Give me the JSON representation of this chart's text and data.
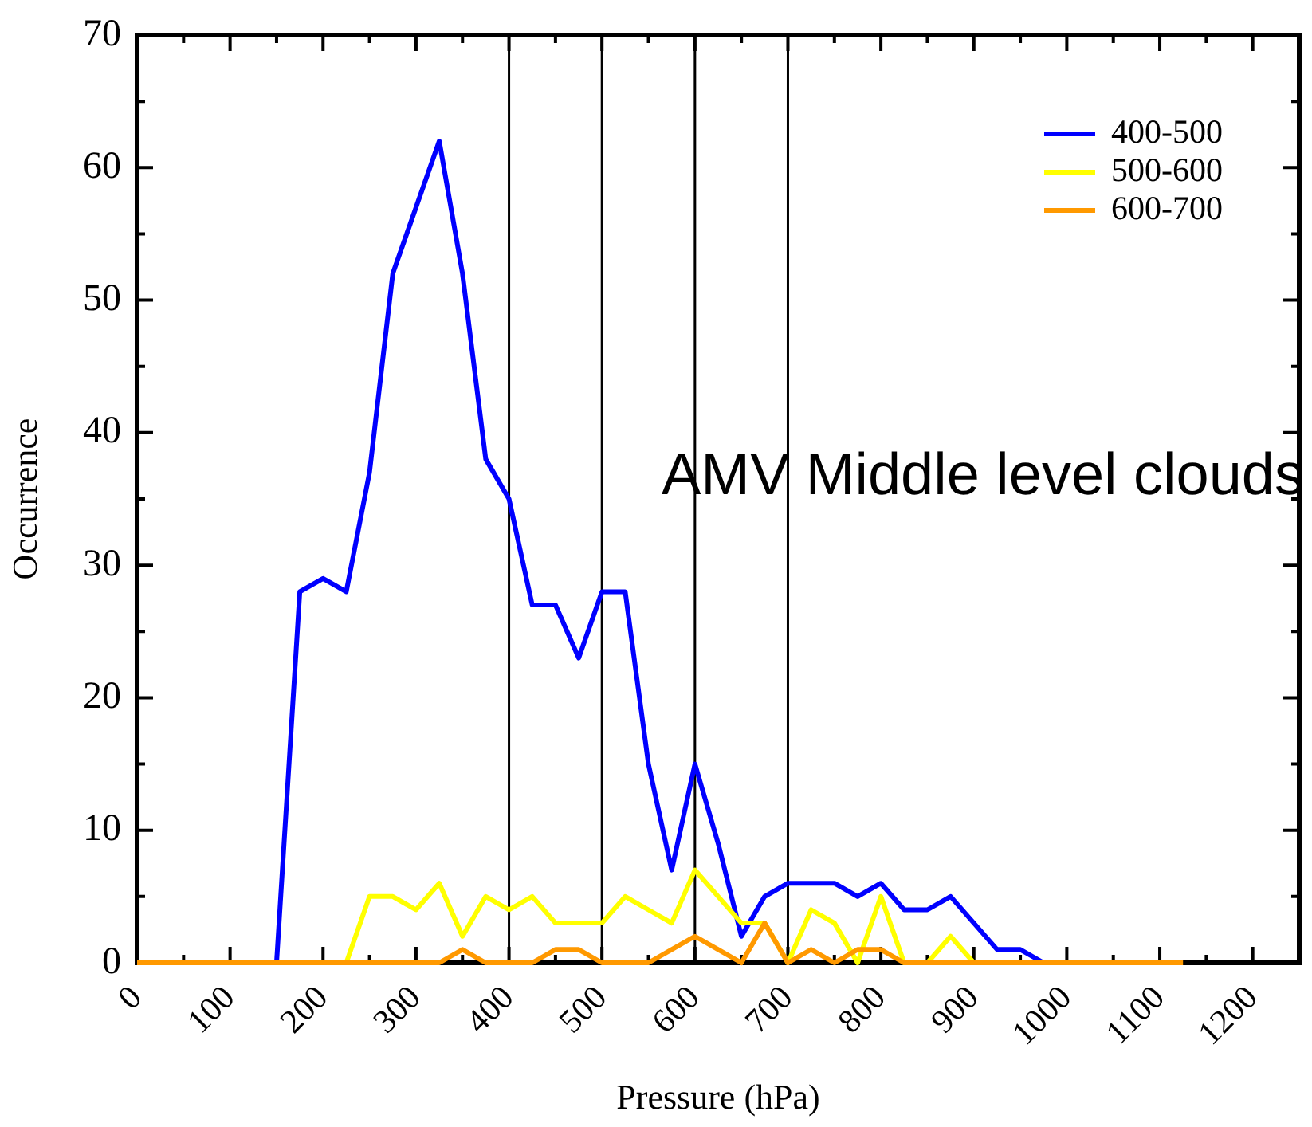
{
  "chart_data": {
    "type": "line",
    "xlabel": "Pressure (hPa)",
    "ylabel": "Occurrence",
    "x": [
      0,
      25,
      50,
      75,
      100,
      125,
      150,
      175,
      200,
      225,
      250,
      275,
      300,
      325,
      350,
      375,
      400,
      425,
      450,
      475,
      500,
      525,
      550,
      575,
      600,
      625,
      650,
      675,
      700,
      725,
      750,
      775,
      800,
      825,
      850,
      875,
      900,
      925,
      950,
      975,
      1000,
      1025,
      1050,
      1075,
      1100,
      1125
    ],
    "series": [
      {
        "name": "400-500",
        "color": "#0000ff",
        "values": [
          null,
          null,
          null,
          null,
          null,
          null,
          0,
          28,
          29,
          28,
          37,
          52,
          57,
          62,
          52,
          38,
          35,
          27,
          27,
          23,
          28,
          28,
          15,
          7,
          15,
          9,
          2,
          5,
          6,
          6,
          6,
          5,
          6,
          4,
          4,
          5,
          3,
          1,
          1,
          0,
          null,
          null,
          null,
          null,
          null,
          null
        ]
      },
      {
        "name": "500-600",
        "color": "#ffff00",
        "values": [
          null,
          null,
          null,
          null,
          null,
          null,
          null,
          null,
          null,
          0,
          5,
          5,
          4,
          6,
          2,
          5,
          4,
          5,
          3,
          3,
          3,
          5,
          4,
          3,
          7,
          5,
          3,
          3,
          0,
          4,
          3,
          0,
          5,
          0,
          0,
          2,
          0,
          null,
          null,
          null,
          null,
          null,
          null,
          null,
          null,
          null
        ]
      },
      {
        "name": "600-700",
        "color": "#ff9900",
        "values": [
          0,
          0,
          0,
          0,
          0,
          0,
          0,
          0,
          0,
          0,
          0,
          0,
          0,
          0,
          1,
          0,
          0,
          0,
          1,
          1,
          0,
          0,
          0,
          1,
          2,
          1,
          0,
          3,
          0,
          1,
          0,
          1,
          1,
          0,
          0,
          0,
          0,
          0,
          0,
          0,
          0,
          0,
          0,
          0,
          0,
          0
        ]
      }
    ],
    "xlim": [
      0,
      1250
    ],
    "xticks": [
      0,
      {
        "value": 50,
        "label": null
      },
      100,
      {
        "value": 150,
        "label": null
      },
      200,
      {
        "value": 250,
        "label": null
      },
      300,
      {
        "value": 350,
        "label": null
      },
      400,
      {
        "value": 450,
        "label": null
      },
      500,
      {
        "value": 550,
        "label": null
      },
      600,
      {
        "value": 650,
        "label": null
      },
      700,
      {
        "value": 750,
        "label": null
      },
      800,
      {
        "value": 850,
        "label": null
      },
      900,
      {
        "value": 950,
        "label": null
      },
      1000,
      {
        "value": 1050,
        "label": null
      },
      1100,
      {
        "value": 1150,
        "label": null
      },
      1200
    ],
    "ylim": [
      0,
      70
    ],
    "yticks": [
      0,
      {
        "value": 5,
        "label": null
      },
      10,
      {
        "value": 15,
        "label": null
      },
      20,
      {
        "value": 25,
        "label": null
      },
      30,
      {
        "value": 35,
        "label": null
      },
      40,
      {
        "value": 45,
        "label": null
      },
      50,
      {
        "value": 55,
        "label": null
      },
      60,
      {
        "value": 65,
        "label": null
      },
      70
    ],
    "ref_lines": [
      {
        "axis": "x",
        "value": 400,
        "color": "#000000"
      },
      {
        "axis": "x",
        "value": 500,
        "color": "#000000"
      },
      {
        "axis": "x",
        "value": 600,
        "color": "#000000"
      },
      {
        "axis": "x",
        "value": 700,
        "color": "#000000"
      }
    ],
    "annotations": [
      "AMV Middle level clouds"
    ],
    "legend": "top right",
    "grid": false,
    "marker": "none",
    "line_style": "solid"
  }
}
